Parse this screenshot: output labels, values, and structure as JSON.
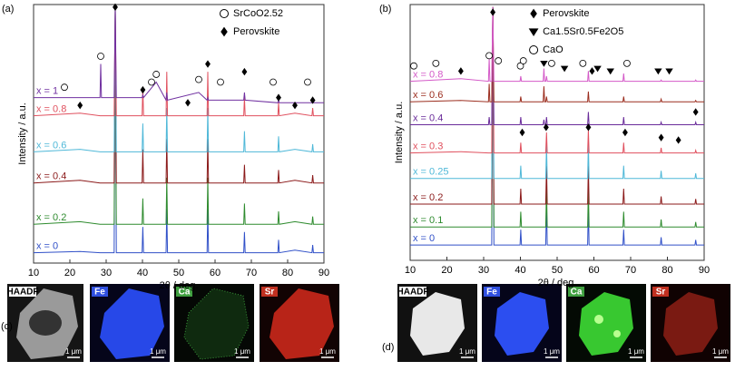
{
  "chart_data": [
    {
      "type": "line",
      "panel_label": "(a)",
      "x_label": "2θ / deg.",
      "y_label": "Intensity / a.u.",
      "xlim": [
        10,
        90
      ],
      "xticks": [
        10,
        20,
        30,
        40,
        50,
        60,
        70,
        80,
        90
      ],
      "ylim": [
        0,
        100
      ],
      "legend": "upper right",
      "x": [
        10,
        22.8,
        28.3,
        28.5,
        28.7,
        32.2,
        32.5,
        32.8,
        39.9,
        40.1,
        40.3,
        43.8,
        46.5,
        46.7,
        46.9,
        55.5,
        57.8,
        58.0,
        58.2,
        67.9,
        68.1,
        68.3,
        77.3,
        77.5,
        77.7,
        82.0,
        86.7,
        86.9,
        87.1,
        90
      ],
      "series": [
        {
          "name": "x = 0",
          "color": "#3050c8",
          "values": [
            4,
            4.5,
            4,
            4,
            4,
            4,
            99,
            4,
            4,
            14,
            4,
            4,
            4,
            21,
            4,
            4,
            4,
            21,
            4,
            4,
            12,
            4,
            4,
            9,
            4,
            5,
            4,
            7,
            4,
            4
          ]
        },
        {
          "name": "x = 0.2",
          "color": "#2e8b2e",
          "values": [
            15,
            16,
            15,
            15,
            15,
            15,
            99,
            15,
            15,
            25,
            15,
            15,
            15,
            33,
            15,
            15,
            15,
            33,
            15,
            15,
            23,
            15,
            15,
            20,
            15,
            16,
            15,
            18,
            15,
            15
          ]
        },
        {
          "name": "x = 0.4",
          "color": "#8b1a1a",
          "values": [
            31,
            32,
            31,
            31,
            31,
            31,
            99,
            31,
            31,
            44,
            31,
            31,
            31,
            48,
            31,
            31,
            31,
            48,
            31,
            31,
            38,
            31,
            31,
            36,
            31,
            32,
            31,
            34,
            31,
            31
          ]
        },
        {
          "name": "x = 0.6",
          "color": "#4fb8d8",
          "values": [
            43,
            44,
            43,
            43,
            43,
            43,
            99,
            43,
            43,
            54,
            43,
            43,
            43,
            60,
            43,
            43,
            43,
            60,
            43,
            43,
            51,
            43,
            43,
            49,
            43,
            44,
            43,
            46,
            43,
            43
          ]
        },
        {
          "name": "x = 0.8",
          "color": "#e0505e",
          "values": [
            57,
            58,
            57,
            57,
            57,
            57,
            99,
            57,
            57,
            68,
            57,
            57,
            57,
            74,
            57,
            57,
            57,
            74,
            57,
            57,
            64,
            57,
            57,
            62,
            57,
            58,
            57,
            60,
            57,
            57
          ]
        },
        {
          "name": "x = 1",
          "color": "#7030a0",
          "values": [
            64,
            64,
            64,
            77,
            64,
            64,
            99,
            64,
            64,
            65,
            64,
            70,
            63,
            66,
            63,
            66,
            63,
            64,
            63,
            63,
            66,
            63,
            62,
            63,
            62,
            62,
            62,
            62,
            62,
            62
          ]
        }
      ],
      "markers": [
        {
          "name": "SrCoO2.52",
          "symbol": "circle",
          "x": [
            18.5,
            28.5,
            42.5,
            43.8,
            55.5,
            61.5,
            76,
            85.5
          ],
          "y": [
            68,
            80,
            70,
            73,
            71,
            70,
            70,
            70
          ]
        },
        {
          "name": "Perovskite",
          "symbol": "diamond",
          "x": [
            32.5,
            58.0,
            68.1,
            22.8,
            40.1,
            52.5,
            77.5,
            82.0,
            86.9
          ],
          "y": [
            99,
            77,
            74,
            61,
            67,
            62,
            64,
            61,
            63
          ]
        }
      ]
    },
    {
      "type": "line",
      "panel_label": "(b)",
      "x_label": "2θ / deg.",
      "y_label": "Intensity / a.u.",
      "xlim": [
        10,
        90
      ],
      "xticks": [
        10,
        20,
        30,
        40,
        50,
        60,
        70,
        80,
        90
      ],
      "ylim": [
        0,
        100
      ],
      "legend": "upper center",
      "x": [
        10,
        23.8,
        31.3,
        31.5,
        31.7,
        32.2,
        32.5,
        32.8,
        39.9,
        40.1,
        40.3,
        46.2,
        46.4,
        46.6,
        46.9,
        47.1,
        47.3,
        58.3,
        58.5,
        58.7,
        67.9,
        68.1,
        68.3,
        78.1,
        78.3,
        78.5,
        87.5,
        87.7,
        87.9,
        90
      ],
      "series": [
        {
          "name": "x = 0",
          "color": "#3050c8",
          "values": [
            6,
            6,
            6,
            6,
            6,
            6,
            99,
            6,
            6,
            12,
            6,
            6,
            6,
            6,
            6,
            22,
            6,
            6,
            22,
            6,
            6,
            12,
            6,
            6,
            9,
            6,
            6,
            8,
            6,
            6
          ]
        },
        {
          "name": "x = 0.1",
          "color": "#2e8b2e",
          "values": [
            13,
            13,
            13,
            13,
            13,
            13,
            99,
            13,
            13,
            19,
            13,
            13,
            13,
            13,
            13,
            28,
            13,
            13,
            28,
            13,
            13,
            19,
            13,
            13,
            16,
            13,
            13,
            15,
            13,
            13
          ]
        },
        {
          "name": "x = 0.2",
          "color": "#8b1a1a",
          "values": [
            22,
            22,
            22,
            22,
            22,
            22,
            99,
            22,
            22,
            28,
            22,
            22,
            22,
            22,
            22,
            37,
            22,
            22,
            37,
            22,
            22,
            28,
            22,
            22,
            25,
            22,
            22,
            24,
            22,
            22
          ]
        },
        {
          "name": "x = 0.25",
          "color": "#4fb8d8",
          "values": [
            32,
            32,
            32,
            32,
            32,
            32,
            99,
            32,
            32,
            37,
            32,
            32,
            32,
            32,
            32,
            45,
            32,
            32,
            46,
            32,
            32,
            37,
            32,
            32,
            35,
            32,
            32,
            34,
            32,
            32
          ]
        },
        {
          "name": "x = 0.3",
          "color": "#e0505e",
          "values": [
            42,
            42.5,
            42,
            42,
            42,
            42,
            99,
            42,
            42,
            46,
            42,
            42,
            42,
            42,
            42,
            50,
            42,
            42,
            51,
            42,
            42,
            46,
            42,
            42,
            44,
            42,
            42,
            43,
            42,
            42
          ]
        },
        {
          "name": "x = 0.4",
          "color": "#6a2c9a",
          "values": [
            53,
            53,
            53,
            56,
            53,
            53,
            99,
            53,
            53,
            56,
            53,
            53,
            55,
            53,
            53,
            56,
            53,
            53,
            58,
            53,
            53,
            56,
            53,
            53,
            54,
            53,
            53,
            54,
            53,
            53
          ]
        },
        {
          "name": "x = 0.6",
          "color": "#9b2d1e",
          "values": [
            62,
            62.5,
            62,
            69,
            62,
            62,
            99,
            62,
            62,
            64,
            62,
            62,
            68,
            62,
            62,
            64,
            62,
            62,
            66,
            62,
            62,
            64,
            62,
            62,
            63,
            62,
            62,
            62.5,
            62,
            62
          ]
        },
        {
          "name": "x = 0.8",
          "color": "#d45ac8",
          "values": [
            70,
            71,
            70,
            79,
            70,
            70,
            99,
            70,
            70,
            72,
            70,
            70,
            75,
            70,
            70,
            72,
            70,
            70,
            74,
            70,
            70,
            73,
            70,
            70,
            70.5,
            70,
            70,
            70.5,
            70,
            70
          ]
        }
      ],
      "markers": [
        {
          "name": "Perovskite",
          "symbol": "diamond",
          "x": [
            32.5,
            23.8,
            59.5,
            40.5,
            47,
            58.5,
            68.5,
            78.3,
            83,
            87.7
          ],
          "y": [
            97,
            74,
            74,
            50,
            52,
            52,
            50,
            48,
            47,
            58
          ]
        },
        {
          "name": "Ca1.5Sr0.5Fe2O5",
          "symbol": "triangle",
          "x": [
            46.4,
            52,
            61,
            64.5,
            77.5,
            80.5
          ],
          "y": [
            77,
            75,
            75,
            74,
            74,
            74
          ]
        },
        {
          "name": "CaO",
          "symbol": "circle",
          "x": [
            11,
            17,
            31.5,
            34,
            40,
            40.8,
            48.5,
            57,
            69
          ],
          "y": [
            76,
            77,
            80,
            78,
            76,
            78,
            77,
            77,
            77
          ]
        }
      ]
    }
  ],
  "micrographs": [
    {
      "label": "(c)",
      "tiles": [
        "HAADF",
        "Fe",
        "Ca",
        "Sr"
      ],
      "scale": "1 μm"
    },
    {
      "label": "(d)",
      "tiles": [
        "HAADF",
        "Fe",
        "Ca",
        "Sr"
      ],
      "scale": "1 μm"
    }
  ]
}
